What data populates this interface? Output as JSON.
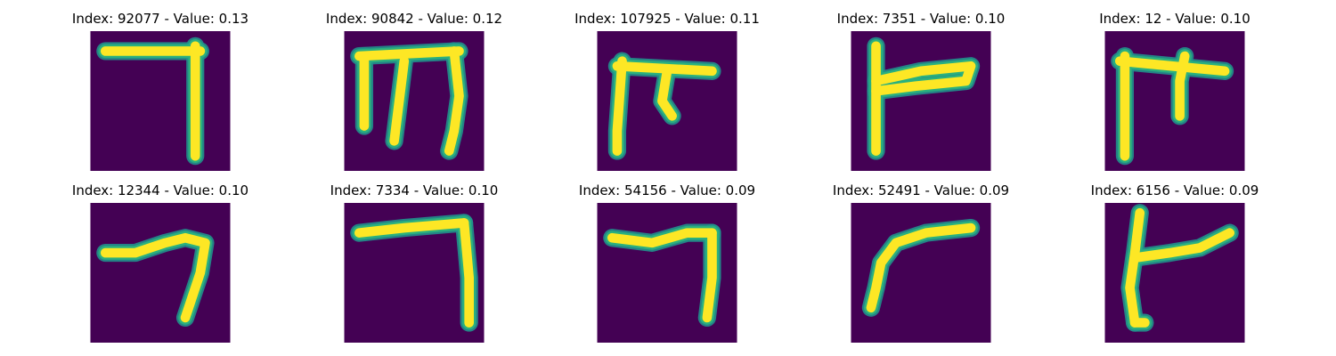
{
  "figure": {
    "colors": {
      "background": "#440154",
      "stroke_core": "#fde725",
      "stroke_edge": "#2ab07f",
      "stroke_glow": "#21918c"
    },
    "panels": [
      {
        "title": "Index: 92077 - Value: 0.13",
        "index": 92077,
        "value": 0.13,
        "glyph": "seven-hook"
      },
      {
        "title": "Index: 90842 - Value: 0.12",
        "index": 90842,
        "value": 0.12,
        "glyph": "m-shape"
      },
      {
        "title": "Index: 107925 - Value: 0.11",
        "index": 107925,
        "value": 0.11,
        "glyph": "pi-hook"
      },
      {
        "title": "Index: 7351 - Value: 0.10",
        "index": 7351,
        "value": 0.1,
        "glyph": "flag"
      },
      {
        "title": "Index: 12 - Value: 0.10",
        "index": 12,
        "value": 0.1,
        "glyph": "pi-tall"
      },
      {
        "title": "Index: 12344 - Value: 0.10",
        "index": 12344,
        "value": 0.1,
        "glyph": "wave-hook"
      },
      {
        "title": "Index: 7334 - Value: 0.10",
        "index": 7334,
        "value": 0.1,
        "glyph": "seven-wide"
      },
      {
        "title": "Index: 54156 - Value: 0.09",
        "index": 54156,
        "value": 0.09,
        "glyph": "seven-curve"
      },
      {
        "title": "Index: 52491 - Value: 0.09",
        "index": 52491,
        "value": 0.09,
        "glyph": "arc"
      },
      {
        "title": "Index: 6156 - Value: 0.09",
        "index": 6156,
        "value": 0.09,
        "glyph": "y-shape"
      }
    ]
  }
}
